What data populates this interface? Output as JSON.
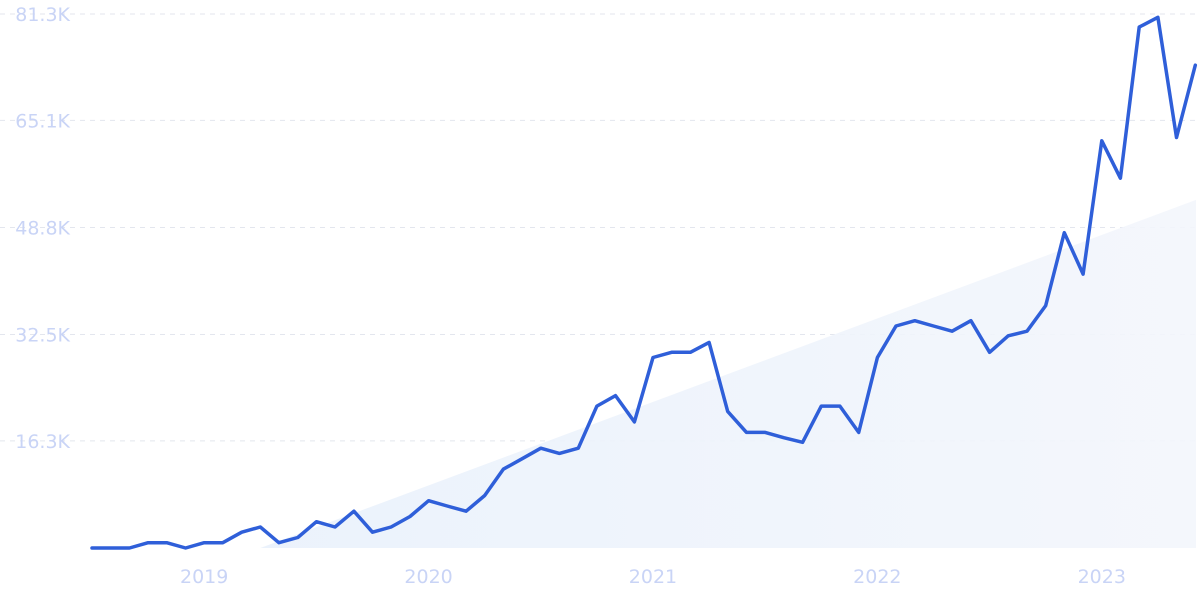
{
  "chart_data": {
    "type": "line",
    "grid": "horizontal-dashed",
    "y_ticks": [
      {
        "value": 81300,
        "label": "81.3K"
      },
      {
        "value": 65100,
        "label": "65.1K"
      },
      {
        "value": 48800,
        "label": "48.8K"
      },
      {
        "value": 32500,
        "label": "32.5K"
      },
      {
        "value": 16300,
        "label": "16.3K"
      }
    ],
    "ylim": [
      0,
      81300
    ],
    "x_ticks": [
      {
        "value": 2019.0,
        "label": "2019"
      },
      {
        "value": 2020.0,
        "label": "2020"
      },
      {
        "value": 2021.0,
        "label": "2021"
      },
      {
        "value": 2022.0,
        "label": "2022"
      },
      {
        "value": 2023.0,
        "label": "2023"
      }
    ],
    "xlim": [
      2018.5,
      2023.42
    ],
    "series": [
      {
        "color": "#2f5fd9",
        "x": [
          2018.5,
          2018.583,
          2018.667,
          2018.75,
          2018.833,
          2018.917,
          2019.0,
          2019.083,
          2019.167,
          2019.25,
          2019.333,
          2019.417,
          2019.5,
          2019.583,
          2019.667,
          2019.75,
          2019.833,
          2019.917,
          2020.0,
          2020.083,
          2020.167,
          2020.25,
          2020.333,
          2020.417,
          2020.5,
          2020.583,
          2020.667,
          2020.75,
          2020.833,
          2020.917,
          2021.0,
          2021.083,
          2021.167,
          2021.25,
          2021.333,
          2021.417,
          2021.5,
          2021.583,
          2021.667,
          2021.75,
          2021.833,
          2021.917,
          2022.0,
          2022.083,
          2022.167,
          2022.25,
          2022.333,
          2022.417,
          2022.5,
          2022.583,
          2022.667,
          2022.75,
          2022.833,
          2022.917,
          2023.0,
          2023.083,
          2023.167,
          2023.25,
          2023.333,
          2023.417
        ],
        "y": [
          0,
          0,
          0,
          800,
          800,
          0,
          800,
          800,
          2400,
          3200,
          800,
          1600,
          4000,
          3200,
          5600,
          2400,
          3200,
          4800,
          7200,
          6400,
          5600,
          8000,
          12000,
          13600,
          15200,
          14400,
          15200,
          21600,
          23200,
          19200,
          29000,
          29800,
          29800,
          31300,
          20800,
          17600,
          17600,
          16800,
          16100,
          21600,
          21600,
          17600,
          29000,
          33800,
          34600,
          33800,
          33000,
          34600,
          29800,
          32300,
          33000,
          36900,
          48000,
          41700,
          62000,
          56300,
          79300,
          80800,
          62500,
          73500
        ]
      }
    ],
    "trend_area": {
      "color": "#e8f0fb",
      "x": [
        2019.25,
        2023.42
      ],
      "y": [
        0,
        53000
      ]
    }
  }
}
